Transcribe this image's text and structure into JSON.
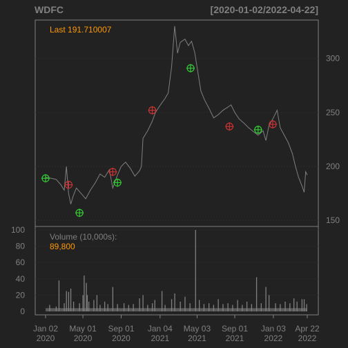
{
  "chart_data": {
    "type": "line",
    "symbol": "WDFC",
    "date_range": "[2020-01-02/2022-04-22]",
    "last_label": "Last 191.710007",
    "price_y_ticks": [
      150,
      200,
      250,
      300
    ],
    "price_ylim": [
      145,
      335
    ],
    "volume_label": "Volume (10,000s):",
    "volume_last": "89,800",
    "volume_y_ticks": [
      0,
      20,
      40,
      60,
      80,
      100
    ],
    "volume_ylim": [
      0,
      100
    ],
    "x_ticks": [
      {
        "date": "2020-01-02",
        "line1": "Jan 02",
        "line2": "2020"
      },
      {
        "date": "2020-05-01",
        "line1": "May 01",
        "line2": "2020"
      },
      {
        "date": "2020-09-01",
        "line1": "Sep 01",
        "line2": "2020"
      },
      {
        "date": "2021-01-04",
        "line1": "Jan 04",
        "line2": "2021"
      },
      {
        "date": "2021-05-03",
        "line1": "May 03",
        "line2": "2021"
      },
      {
        "date": "2021-09-01",
        "line1": "Sep 01",
        "line2": "2021"
      },
      {
        "date": "2022-01-03",
        "line1": "Jan 03",
        "line2": "2022"
      },
      {
        "date": "2022-04-22",
        "line1": "Apr 22",
        "line2": "2022"
      }
    ],
    "price_series": [
      [
        "2020-01-02",
        190
      ],
      [
        "2020-01-20",
        189
      ],
      [
        "2020-02-05",
        188
      ],
      [
        "2020-02-20",
        183
      ],
      [
        "2020-03-02",
        178
      ],
      [
        "2020-03-09",
        200
      ],
      [
        "2020-03-16",
        175
      ],
      [
        "2020-03-23",
        165
      ],
      [
        "2020-03-30",
        172
      ],
      [
        "2020-04-10",
        180
      ],
      [
        "2020-04-25",
        175
      ],
      [
        "2020-05-10",
        170
      ],
      [
        "2020-05-25",
        178
      ],
      [
        "2020-06-10",
        185
      ],
      [
        "2020-06-25",
        193
      ],
      [
        "2020-07-10",
        190
      ],
      [
        "2020-07-25",
        197
      ],
      [
        "2020-08-05",
        180
      ],
      [
        "2020-08-20",
        192
      ],
      [
        "2020-09-01",
        200
      ],
      [
        "2020-09-15",
        204
      ],
      [
        "2020-10-01",
        198
      ],
      [
        "2020-10-15",
        191
      ],
      [
        "2020-10-30",
        196
      ],
      [
        "2020-11-05",
        200
      ],
      [
        "2020-11-10",
        226
      ],
      [
        "2020-11-25",
        233
      ],
      [
        "2020-12-10",
        242
      ],
      [
        "2020-12-20",
        250
      ],
      [
        "2021-01-05",
        257
      ],
      [
        "2021-01-20",
        263
      ],
      [
        "2021-01-30",
        268
      ],
      [
        "2021-02-10",
        292
      ],
      [
        "2021-02-20",
        330
      ],
      [
        "2021-03-01",
        305
      ],
      [
        "2021-03-10",
        315
      ],
      [
        "2021-03-25",
        318
      ],
      [
        "2021-04-05",
        312
      ],
      [
        "2021-04-15",
        316
      ],
      [
        "2021-04-25",
        306
      ],
      [
        "2021-05-05",
        288
      ],
      [
        "2021-05-15",
        270
      ],
      [
        "2021-05-28",
        261
      ],
      [
        "2021-06-10",
        254
      ],
      [
        "2021-06-25",
        245
      ],
      [
        "2021-07-10",
        248
      ],
      [
        "2021-07-25",
        252
      ],
      [
        "2021-08-10",
        255
      ],
      [
        "2021-08-20",
        257
      ],
      [
        "2021-09-01",
        250
      ],
      [
        "2021-09-15",
        244
      ],
      [
        "2021-10-01",
        240
      ],
      [
        "2021-10-15",
        236
      ],
      [
        "2021-11-01",
        232
      ],
      [
        "2021-11-15",
        229
      ],
      [
        "2021-12-01",
        233
      ],
      [
        "2021-12-10",
        224
      ],
      [
        "2021-12-20",
        238
      ],
      [
        "2022-01-03",
        245
      ],
      [
        "2022-01-15",
        252
      ],
      [
        "2022-01-25",
        236
      ],
      [
        "2022-02-05",
        230
      ],
      [
        "2022-02-20",
        222
      ],
      [
        "2022-03-05",
        212
      ],
      [
        "2022-03-15",
        200
      ],
      [
        "2022-03-25",
        190
      ],
      [
        "2022-04-05",
        182
      ],
      [
        "2022-04-12",
        176
      ],
      [
        "2022-04-17",
        195
      ],
      [
        "2022-04-22",
        192
      ]
    ],
    "volume_series": [
      [
        "2020-01-15",
        8
      ],
      [
        "2020-02-05",
        6
      ],
      [
        "2020-02-14",
        38
      ],
      [
        "2020-03-02",
        10
      ],
      [
        "2020-03-09",
        25
      ],
      [
        "2020-03-16",
        24
      ],
      [
        "2020-03-23",
        28
      ],
      [
        "2020-04-01",
        12
      ],
      [
        "2020-04-20",
        10
      ],
      [
        "2020-05-01",
        20
      ],
      [
        "2020-05-05",
        44
      ],
      [
        "2020-05-12",
        35
      ],
      [
        "2020-05-15",
        20
      ],
      [
        "2020-05-20",
        12
      ],
      [
        "2020-06-05",
        14
      ],
      [
        "2020-06-15",
        20
      ],
      [
        "2020-06-25",
        8
      ],
      [
        "2020-07-10",
        12
      ],
      [
        "2020-07-20",
        9
      ],
      [
        "2020-08-05",
        30
      ],
      [
        "2020-08-20",
        9
      ],
      [
        "2020-09-10",
        10
      ],
      [
        "2020-09-25",
        8
      ],
      [
        "2020-10-10",
        9
      ],
      [
        "2020-10-30",
        16
      ],
      [
        "2020-11-10",
        20
      ],
      [
        "2020-11-25",
        8
      ],
      [
        "2020-12-10",
        10
      ],
      [
        "2020-12-18",
        14
      ],
      [
        "2021-01-10",
        25
      ],
      [
        "2021-01-20",
        8
      ],
      [
        "2021-02-10",
        15
      ],
      [
        "2021-02-20",
        22
      ],
      [
        "2021-03-10",
        12
      ],
      [
        "2021-03-25",
        18
      ],
      [
        "2021-04-10",
        10
      ],
      [
        "2021-04-28",
        100
      ],
      [
        "2021-05-10",
        14
      ],
      [
        "2021-05-25",
        9
      ],
      [
        "2021-06-10",
        10
      ],
      [
        "2021-06-25",
        8
      ],
      [
        "2021-07-10",
        15
      ],
      [
        "2021-07-25",
        9
      ],
      [
        "2021-08-10",
        10
      ],
      [
        "2021-08-25",
        8
      ],
      [
        "2021-09-10",
        14
      ],
      [
        "2021-09-25",
        8
      ],
      [
        "2021-10-10",
        12
      ],
      [
        "2021-10-25",
        9
      ],
      [
        "2021-11-10",
        42
      ],
      [
        "2021-11-25",
        10
      ],
      [
        "2021-12-10",
        30
      ],
      [
        "2021-12-20",
        20
      ],
      [
        "2022-01-10",
        10
      ],
      [
        "2022-01-25",
        9
      ],
      [
        "2022-02-10",
        12
      ],
      [
        "2022-02-25",
        10
      ],
      [
        "2022-03-10",
        16
      ],
      [
        "2022-03-20",
        12
      ],
      [
        "2022-04-05",
        15
      ],
      [
        "2022-04-12",
        15
      ],
      [
        "2022-04-20",
        9
      ]
    ],
    "buy_markers": [
      [
        "2020-01-02",
        189
      ],
      [
        "2020-04-20",
        157
      ],
      [
        "2020-08-20",
        185
      ],
      [
        "2021-04-12",
        291
      ],
      [
        "2021-11-15",
        234
      ]
    ],
    "sell_markers": [
      [
        "2020-03-16",
        183
      ],
      [
        "2020-08-05",
        195
      ],
      [
        "2020-12-10",
        252
      ],
      [
        "2021-08-15",
        237
      ],
      [
        "2022-01-01",
        239
      ]
    ],
    "colors": {
      "background": "#222222",
      "grid": "#2c2c2c",
      "line": "#808080",
      "frame": "#808080",
      "text": "#808080",
      "accent": "#ff9900",
      "buy": "#33cc33",
      "sell": "#cc3333"
    }
  }
}
